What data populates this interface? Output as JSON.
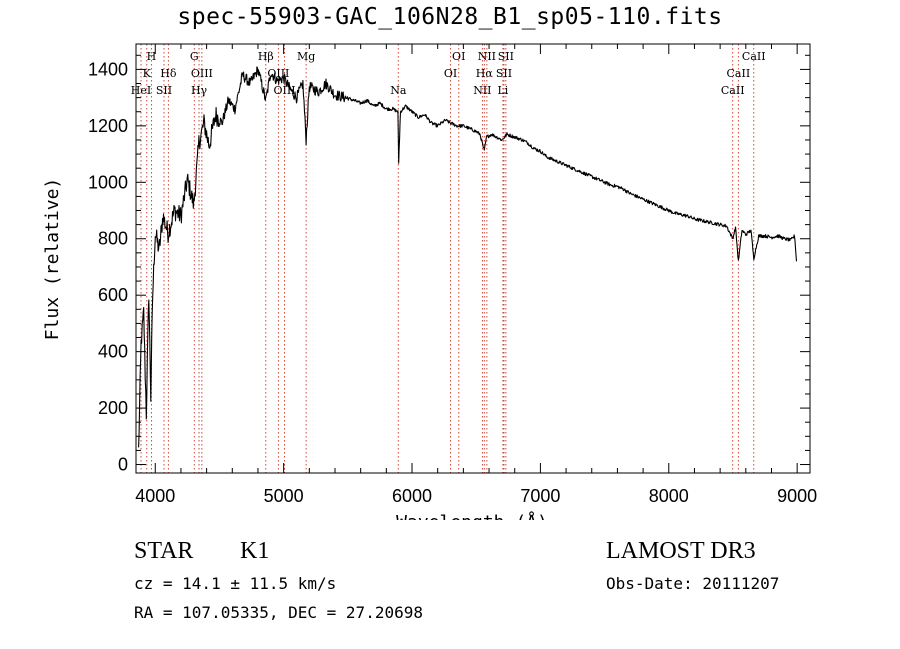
{
  "chart_data": {
    "type": "line",
    "title": "spec-55903-GAC_106N28_B1_sp05-110.fits",
    "xlabel": "Wavelength (Å)",
    "ylabel": "Flux (relative)",
    "xlim": [
      3850,
      9100
    ],
    "ylim": [
      -30,
      1490
    ],
    "xticks": [
      4000,
      5000,
      6000,
      7000,
      8000,
      9000
    ],
    "yticks": [
      0,
      200,
      400,
      600,
      800,
      1000,
      1200,
      1400
    ],
    "series": [
      {
        "name": "flux",
        "x": [
          3870,
          3890,
          3910,
          3930,
          3950,
          3965,
          3980,
          4000,
          4030,
          4060,
          4100,
          4150,
          4200,
          4250,
          4300,
          4340,
          4380,
          4420,
          4470,
          4520,
          4570,
          4620,
          4680,
          4740,
          4800,
          4861,
          4900,
          4950,
          5000,
          5050,
          5100,
          5150,
          5175,
          5200,
          5270,
          5330,
          5400,
          5480,
          5550,
          5600,
          5650,
          5700,
          5750,
          5800,
          5850,
          5890,
          5896,
          5910,
          5950,
          6000,
          6050,
          6100,
          6150,
          6200,
          6260,
          6300,
          6350,
          6400,
          6450,
          6500,
          6530,
          6563,
          6580,
          6620,
          6660,
          6700,
          6740,
          6800,
          6860,
          6900,
          6950,
          7000,
          7050,
          7100,
          7150,
          7200,
          7250,
          7300,
          7350,
          7400,
          7450,
          7500,
          7550,
          7600,
          7650,
          7700,
          7750,
          7800,
          7850,
          7900,
          7950,
          8000,
          8050,
          8100,
          8150,
          8200,
          8250,
          8300,
          8350,
          8400,
          8450,
          8498,
          8520,
          8542,
          8570,
          8600,
          8640,
          8662,
          8700,
          8750,
          8800,
          8850,
          8900,
          8950,
          8980,
          8995
        ],
        "values": [
          50,
          430,
          540,
          180,
          610,
          240,
          600,
          820,
          760,
          880,
          820,
          900,
          880,
          1010,
          920,
          1140,
          1210,
          1130,
          1240,
          1210,
          1290,
          1260,
          1380,
          1350,
          1400,
          1290,
          1390,
          1360,
          1370,
          1330,
          1300,
          1350,
          1150,
          1340,
          1320,
          1350,
          1310,
          1300,
          1290,
          1280,
          1290,
          1270,
          1280,
          1260,
          1260,
          1250,
          1070,
          1250,
          1270,
          1250,
          1230,
          1240,
          1210,
          1200,
          1220,
          1210,
          1200,
          1200,
          1190,
          1180,
          1170,
          1110,
          1160,
          1170,
          1160,
          1150,
          1170,
          1160,
          1150,
          1140,
          1120,
          1110,
          1090,
          1080,
          1070,
          1060,
          1050,
          1040,
          1030,
          1020,
          1010,
          1000,
          990,
          985,
          975,
          960,
          950,
          940,
          930,
          920,
          910,
          900,
          890,
          885,
          880,
          870,
          865,
          860,
          855,
          850,
          845,
          800,
          840,
          720,
          830,
          815,
          830,
          730,
          810,
          810,
          805,
          810,
          800,
          795,
          810,
          720
        ]
      }
    ],
    "lines": [
      {
        "label": "H",
        "wavelength": 3970,
        "row": 0
      },
      {
        "label": "K",
        "wavelength": 3934,
        "row": 1
      },
      {
        "label": "Hδ",
        "wavelength": 4102,
        "row": 1
      },
      {
        "label": "HeI",
        "wavelength": 3889,
        "row": 2
      },
      {
        "label": "SII",
        "wavelength": 4068,
        "row": 2
      },
      {
        "label": "G",
        "wavelength": 4304,
        "row": 0
      },
      {
        "label": "OIII",
        "wavelength": 4363,
        "row": 1
      },
      {
        "label": "Hγ",
        "wavelength": 4341,
        "row": 2
      },
      {
        "label": "Hβ",
        "wavelength": 4861,
        "row": 0
      },
      {
        "label": "OIII",
        "wavelength": 4959,
        "row": 1
      },
      {
        "label": "OIII",
        "wavelength": 5007,
        "row": 2
      },
      {
        "label": "Mg",
        "wavelength": 5175,
        "row": 0
      },
      {
        "label": "Na",
        "wavelength": 5893,
        "row": 2
      },
      {
        "label": "OI",
        "wavelength": 6364,
        "row": 0
      },
      {
        "label": "OI",
        "wavelength": 6300,
        "row": 1
      },
      {
        "label": "NII",
        "wavelength": 6583,
        "row": 0
      },
      {
        "label": "SII",
        "wavelength": 6731,
        "row": 0
      },
      {
        "label": "Hα",
        "wavelength": 6563,
        "row": 1
      },
      {
        "label": "SII",
        "wavelength": 6716,
        "row": 1
      },
      {
        "label": "NII",
        "wavelength": 6548,
        "row": 2
      },
      {
        "label": "Li",
        "wavelength": 6708,
        "row": 2
      },
      {
        "label": "CaII",
        "wavelength": 8662,
        "row": 0
      },
      {
        "label": "CaII",
        "wavelength": 8542,
        "row": 1
      },
      {
        "label": "CaII",
        "wavelength": 8498,
        "row": 2
      }
    ]
  },
  "info": {
    "class": "STAR",
    "subclass": "K1",
    "survey": "LAMOST DR3",
    "cz": "cz = 14.1 ± 11.5 km/s",
    "obs_date": "Obs-Date: 20111207",
    "radec": "RA = 107.05335, DEC =  27.20698"
  },
  "colors": {
    "line_marker": "#c0392b",
    "spectrum": "#000000",
    "axis": "#000000"
  }
}
